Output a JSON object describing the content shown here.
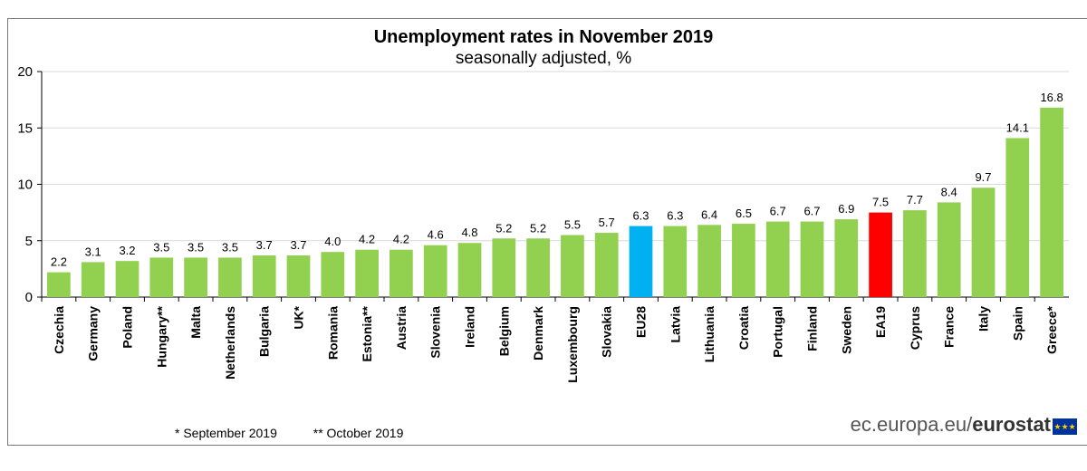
{
  "chart_data": {
    "type": "bar",
    "title": "Unemployment rates in November 2019",
    "subtitle": "seasonally adjusted, %",
    "categories": [
      "Czechia",
      "Germany",
      "Poland",
      "Hungary**",
      "Malta",
      "Netherlands",
      "Bulgaria",
      "UK*",
      "Romania",
      "Estonia**",
      "Austria",
      "Slovenia",
      "Ireland",
      "Belgium",
      "Denmark",
      "Luxembourg",
      "Slovakia",
      "EU28",
      "Latvia",
      "Lithuania",
      "Croatia",
      "Portugal",
      "Finland",
      "Sweden",
      "EA19",
      "Cyprus",
      "France",
      "Italy",
      "Spain",
      "Greece*"
    ],
    "values": [
      2.2,
      3.1,
      3.2,
      3.5,
      3.5,
      3.5,
      3.7,
      3.7,
      4.0,
      4.2,
      4.2,
      4.6,
      4.8,
      5.2,
      5.2,
      5.5,
      5.7,
      6.3,
      6.3,
      6.4,
      6.5,
      6.7,
      6.7,
      6.9,
      7.5,
      7.7,
      8.4,
      9.7,
      14.1,
      16.8
    ],
    "value_labels": [
      "2.2",
      "3.1",
      "3.2",
      "3.5",
      "3.5",
      "3.5",
      "3.7",
      "3.7",
      "4.0",
      "4.2",
      "4.2",
      "4.6",
      "4.8",
      "5.2",
      "5.2",
      "5.5",
      "5.7",
      "6.3",
      "6.3",
      "6.4",
      "6.5",
      "6.7",
      "6.7",
      "6.9",
      "7.5",
      "7.7",
      "8.4",
      "9.7",
      "14.1",
      "16.8"
    ],
    "ylim": [
      0,
      20
    ],
    "yticks": [
      0,
      5,
      10,
      15,
      20
    ],
    "grid": true,
    "colors": {
      "default": "#92d050",
      "EU28": "#00b0f0",
      "EA19": "#ff0000",
      "grid": "#d9d9d9",
      "axis": "#000000"
    }
  },
  "footnotes": [
    "* September 2019",
    "** October 2019"
  ],
  "source": {
    "domain": "ec.europa.eu/",
    "brand": "eurostat"
  }
}
